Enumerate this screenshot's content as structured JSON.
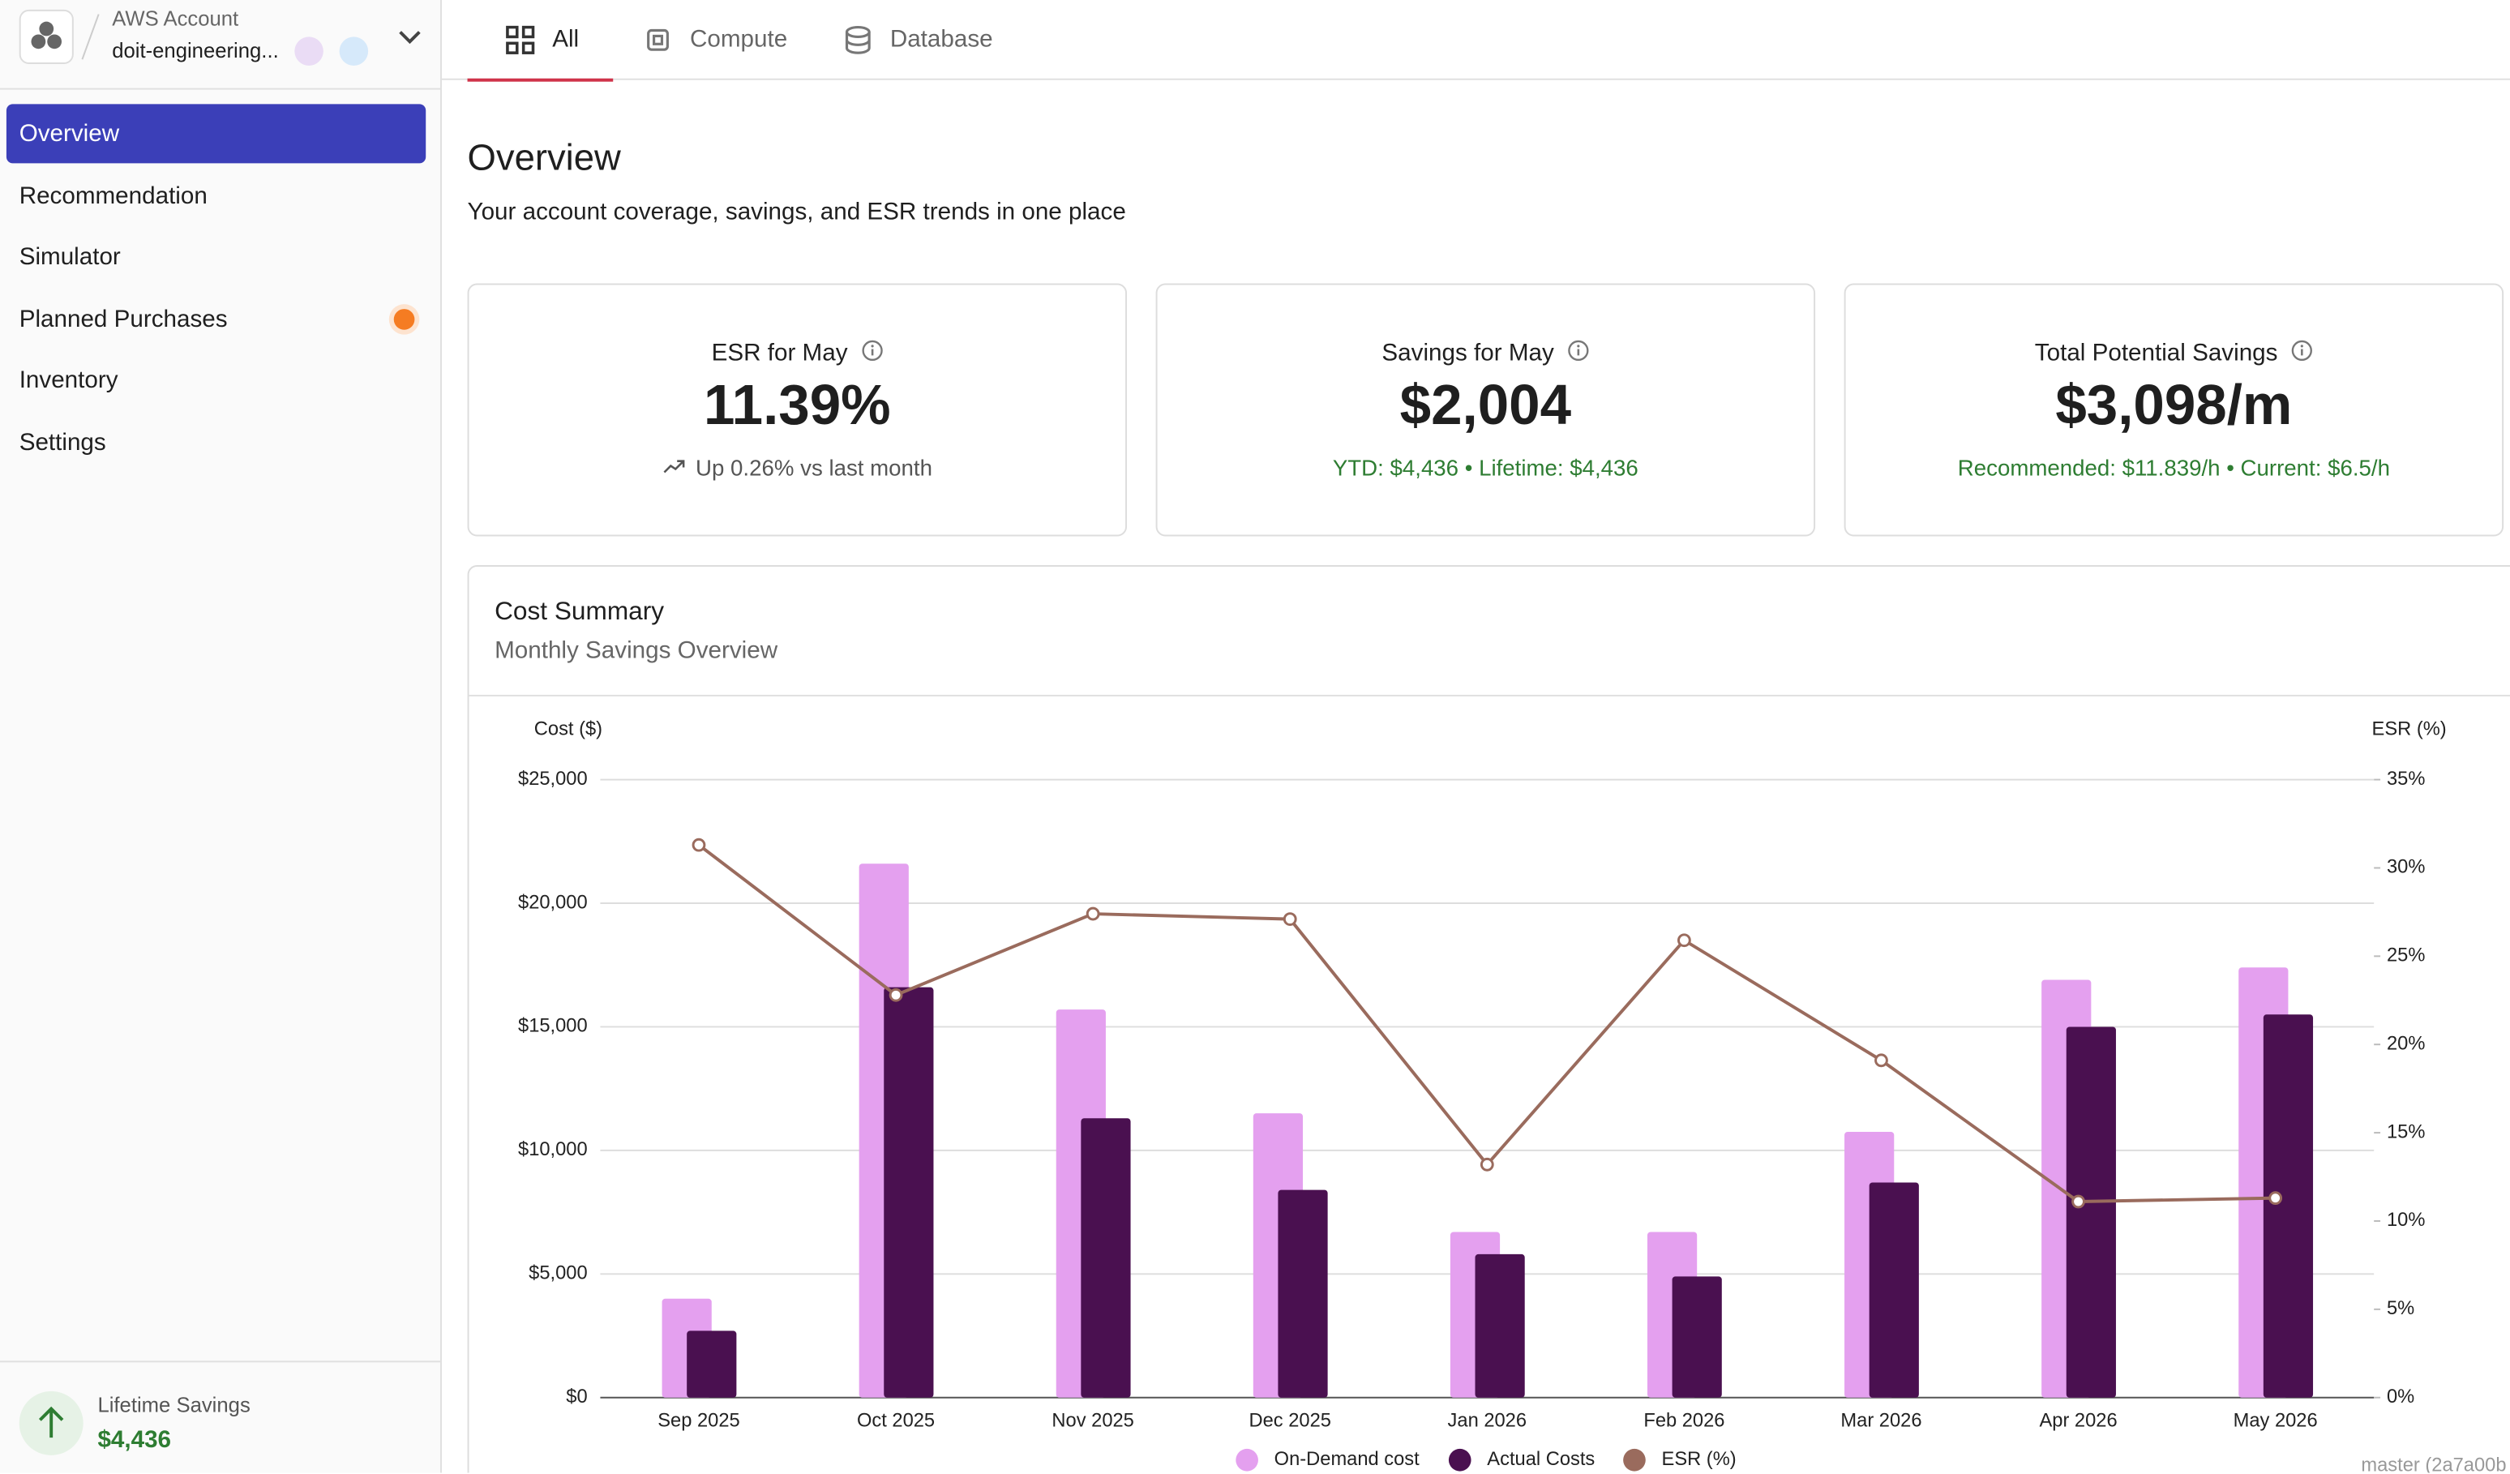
{
  "sidebar": {
    "account_label": "AWS Account",
    "account_name": "doit-engineering...",
    "nav": [
      "Overview",
      "Recommendation",
      "Simulator",
      "Planned Purchases",
      "Inventory",
      "Settings"
    ],
    "lifetime_savings": {
      "label": "Lifetime Savings",
      "value": "$4,436"
    }
  },
  "tabs": [
    "All",
    "Compute",
    "Database"
  ],
  "header": {
    "title": "Overview",
    "subtitle": "Your account coverage, savings, and ESR trends in one place"
  },
  "cards": [
    {
      "label": "ESR for May",
      "value": "11.39%",
      "note": "Up 0.26% vs last month"
    },
    {
      "label": "Savings for May",
      "value": "$2,004",
      "note": "YTD: $4,436 • Lifetime: $4,436"
    },
    {
      "label": "Total Potential Savings",
      "value": "$3,098/m",
      "note": "Recommended: $11.839/h • Current: $6.5/h"
    }
  ],
  "chart_data": {
    "type": "bar",
    "title": "Cost Summary",
    "subtitle": "Monthly Savings Overview",
    "y_label": "Cost ($)",
    "y2_label": "ESR (%)",
    "categories": [
      "Sep 2025",
      "Oct 2025",
      "Nov 2025",
      "Dec 2025",
      "Jan 2026",
      "Feb 2026",
      "Mar 2026",
      "Apr 2026",
      "May 2026"
    ],
    "series": [
      {
        "name": "On-Demand cost",
        "color": "#e4a0ef",
        "values": [
          4000,
          21600,
          15700,
          11500,
          6700,
          6700,
          10750,
          16900,
          17400
        ]
      },
      {
        "name": "Actual Costs",
        "color": "#4a1050",
        "values": [
          2700,
          16600,
          11300,
          8400,
          5800,
          4900,
          8700,
          15000,
          15500
        ]
      },
      {
        "name": "ESR (%)",
        "type": "line",
        "axis": "y2",
        "color": "#9a6b5d",
        "values": [
          31.3,
          22.8,
          27.4,
          27.1,
          13.2,
          25.9,
          19.1,
          11.1,
          11.3
        ]
      }
    ],
    "ylim": [
      0,
      25000
    ],
    "yticks": [
      {
        "value": 0,
        "label": "$0"
      },
      {
        "value": 5000,
        "label": "$5,000"
      },
      {
        "value": 10000,
        "label": "$10,000"
      },
      {
        "value": 15000,
        "label": "$15,000"
      },
      {
        "value": 20000,
        "label": "$20,000"
      },
      {
        "value": 25000,
        "label": "$25,000"
      }
    ],
    "y2lim": [
      0,
      35
    ],
    "y2ticks": [
      {
        "value": 0,
        "label": "0%"
      },
      {
        "value": 5,
        "label": "5%"
      },
      {
        "value": 10,
        "label": "10%"
      },
      {
        "value": 15,
        "label": "15%"
      },
      {
        "value": 20,
        "label": "20%"
      },
      {
        "value": 25,
        "label": "25%"
      },
      {
        "value": 30,
        "label": "30%"
      },
      {
        "value": 35,
        "label": "35%"
      }
    ],
    "grid": true
  },
  "footer": "master (2a7a00b"
}
